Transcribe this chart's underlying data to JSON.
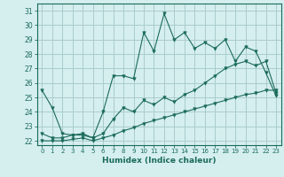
{
  "xlabel": "Humidex (Indice chaleur)",
  "background_color": "#d5eeee",
  "grid_color": "#aacccc",
  "line_color": "#1a6b5a",
  "xlim": [
    -0.5,
    23.5
  ],
  "ylim": [
    21.7,
    31.5
  ],
  "yticks": [
    22,
    23,
    24,
    25,
    26,
    27,
    28,
    29,
    30,
    31
  ],
  "xticks": [
    0,
    1,
    2,
    3,
    4,
    5,
    6,
    7,
    8,
    9,
    10,
    11,
    12,
    13,
    14,
    15,
    16,
    17,
    18,
    19,
    20,
    21,
    22,
    23
  ],
  "hours": [
    0,
    1,
    2,
    3,
    4,
    5,
    6,
    7,
    8,
    9,
    10,
    11,
    12,
    13,
    14,
    15,
    16,
    17,
    18,
    19,
    20,
    21,
    22,
    23
  ],
  "line1": [
    25.5,
    24.3,
    22.5,
    22.4,
    22.4,
    22.2,
    24.0,
    26.5,
    26.5,
    26.3,
    29.5,
    28.2,
    30.8,
    29.0,
    29.5,
    28.4,
    28.8,
    28.4,
    29.0,
    27.5,
    28.5,
    28.2,
    26.7,
    25.1
  ],
  "line2": [
    22.5,
    22.2,
    22.2,
    22.4,
    22.5,
    22.2,
    22.5,
    23.5,
    24.3,
    24.0,
    24.8,
    24.5,
    25.0,
    24.7,
    25.2,
    25.5,
    26.0,
    26.5,
    27.0,
    27.3,
    27.5,
    27.2,
    27.5,
    25.3
  ],
  "line3": [
    22.0,
    22.0,
    22.0,
    22.1,
    22.2,
    22.0,
    22.2,
    22.4,
    22.7,
    22.9,
    23.2,
    23.4,
    23.6,
    23.8,
    24.0,
    24.2,
    24.4,
    24.6,
    24.8,
    25.0,
    25.2,
    25.3,
    25.5,
    25.5
  ]
}
